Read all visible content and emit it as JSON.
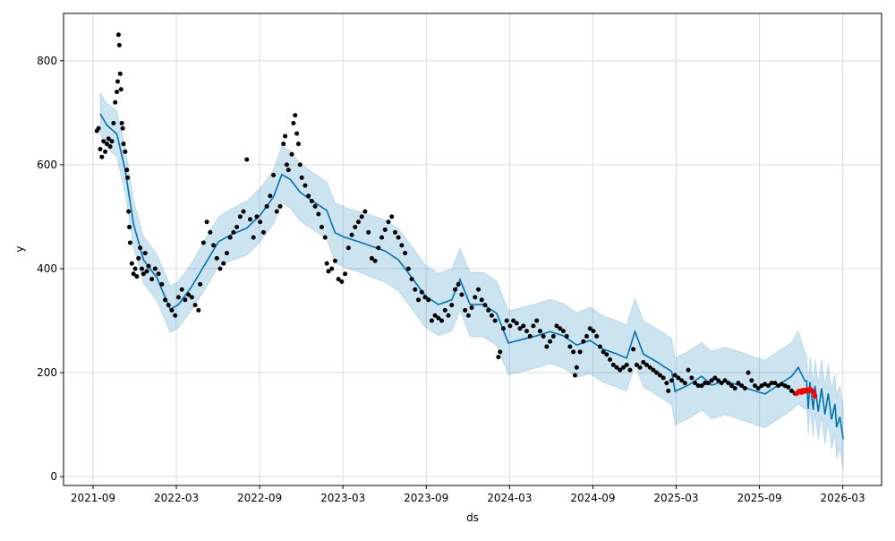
{
  "chart_data": {
    "type": "line",
    "title": "",
    "xlabel": "ds",
    "ylabel": "y",
    "xlim": [
      2021.49,
      2026.4
    ],
    "ylim": [
      -17,
      891
    ],
    "grid": true,
    "x_unit": "decimal year",
    "x_ticks": [
      {
        "label": "2021-09",
        "value": 2021.667
      },
      {
        "label": "2022-03",
        "value": 2022.167
      },
      {
        "label": "2022-09",
        "value": 2022.667
      },
      {
        "label": "2023-03",
        "value": 2023.167
      },
      {
        "label": "2023-09",
        "value": 2023.667
      },
      {
        "label": "2024-03",
        "value": 2024.167
      },
      {
        "label": "2024-09",
        "value": 2024.667
      },
      {
        "label": "2025-03",
        "value": 2025.167
      },
      {
        "label": "2025-09",
        "value": 2025.667
      },
      {
        "label": "2026-03",
        "value": 2026.167
      }
    ],
    "y_ticks": [
      {
        "label": "0",
        "value": 0
      },
      {
        "label": "200",
        "value": 200
      },
      {
        "label": "400",
        "value": 400
      },
      {
        "label": "600",
        "value": 600
      },
      {
        "label": "800",
        "value": 800
      }
    ],
    "colors": {
      "forecast": "#0072B2",
      "interval": "#0072B2",
      "observed": "#000000",
      "test": "#ff0000"
    },
    "forecast_columns": [
      "ds",
      "yhat",
      "interval_halfwidth"
    ],
    "forecast": [
      [
        2021.71,
        698,
        40
      ],
      [
        2021.75,
        676,
        42
      ],
      [
        2021.81,
        659,
        45
      ],
      [
        2021.86,
        590,
        45
      ],
      [
        2021.91,
        486,
        45
      ],
      [
        2021.97,
        417,
        45
      ],
      [
        2022.05,
        383,
        45
      ],
      [
        2022.13,
        322,
        45
      ],
      [
        2022.18,
        331,
        45
      ],
      [
        2022.26,
        366,
        45
      ],
      [
        2022.34,
        409,
        48
      ],
      [
        2022.42,
        452,
        48
      ],
      [
        2022.5,
        466,
        50
      ],
      [
        2022.59,
        478,
        52
      ],
      [
        2022.67,
        503,
        52
      ],
      [
        2022.75,
        538,
        52
      ],
      [
        2022.8,
        581,
        55
      ],
      [
        2022.85,
        572,
        55
      ],
      [
        2022.91,
        547,
        55
      ],
      [
        2022.99,
        529,
        55
      ],
      [
        2023.07,
        512,
        55
      ],
      [
        2023.12,
        469,
        58
      ],
      [
        2023.18,
        460,
        58
      ],
      [
        2023.26,
        452,
        58
      ],
      [
        2023.34,
        443,
        60
      ],
      [
        2023.42,
        434,
        60
      ],
      [
        2023.5,
        417,
        60
      ],
      [
        2023.58,
        383,
        60
      ],
      [
        2023.66,
        348,
        60
      ],
      [
        2023.74,
        331,
        60
      ],
      [
        2023.82,
        340,
        60
      ],
      [
        2023.87,
        379,
        60
      ],
      [
        2023.93,
        331,
        62
      ],
      [
        2024.01,
        331,
        62
      ],
      [
        2024.09,
        314,
        62
      ],
      [
        2024.16,
        257,
        62
      ],
      [
        2024.22,
        262,
        62
      ],
      [
        2024.33,
        271,
        62
      ],
      [
        2024.41,
        279,
        62
      ],
      [
        2024.49,
        271,
        62
      ],
      [
        2024.57,
        253,
        62
      ],
      [
        2024.65,
        262,
        64
      ],
      [
        2024.73,
        245,
        64
      ],
      [
        2024.81,
        236,
        64
      ],
      [
        2024.87,
        228,
        64
      ],
      [
        2024.92,
        279,
        64
      ],
      [
        2024.97,
        236,
        64
      ],
      [
        2025.06,
        219,
        64
      ],
      [
        2025.14,
        202,
        64
      ],
      [
        2025.16,
        164,
        65
      ],
      [
        2025.24,
        176,
        65
      ],
      [
        2025.32,
        193,
        65
      ],
      [
        2025.38,
        176,
        65
      ],
      [
        2025.46,
        184,
        65
      ],
      [
        2025.54,
        176,
        65
      ],
      [
        2025.62,
        167,
        65
      ],
      [
        2025.7,
        159,
        65
      ],
      [
        2025.78,
        176,
        65
      ],
      [
        2025.86,
        193,
        65
      ],
      [
        2025.9,
        210,
        70
      ],
      [
        2025.94,
        184,
        55
      ],
      [
        2025.95,
        184,
        50
      ],
      [
        2025.96,
        130,
        50
      ],
      [
        2025.97,
        182,
        50
      ],
      [
        2025.99,
        128,
        52
      ],
      [
        2026.0,
        175,
        52
      ],
      [
        2026.02,
        125,
        55
      ],
      [
        2026.04,
        170,
        55
      ],
      [
        2026.06,
        120,
        57
      ],
      [
        2026.08,
        160,
        57
      ],
      [
        2026.1,
        110,
        58
      ],
      [
        2026.12,
        140,
        58
      ],
      [
        2026.13,
        95,
        60
      ],
      [
        2026.15,
        115,
        60
      ],
      [
        2026.17,
        72,
        60
      ]
    ],
    "observed_columns": [
      "ds",
      "y"
    ],
    "observed": [
      [
        2021.69,
        665
      ],
      [
        2021.7,
        670
      ],
      [
        2021.71,
        630
      ],
      [
        2021.72,
        615
      ],
      [
        2021.73,
        645
      ],
      [
        2021.74,
        625
      ],
      [
        2021.75,
        640
      ],
      [
        2021.76,
        650
      ],
      [
        2021.77,
        635
      ],
      [
        2021.78,
        645
      ],
      [
        2021.79,
        680
      ],
      [
        2021.8,
        720
      ],
      [
        2021.81,
        740
      ],
      [
        2021.815,
        760
      ],
      [
        2021.82,
        850
      ],
      [
        2021.825,
        830
      ],
      [
        2021.83,
        775
      ],
      [
        2021.835,
        745
      ],
      [
        2021.84,
        680
      ],
      [
        2021.845,
        670
      ],
      [
        2021.85,
        640
      ],
      [
        2021.86,
        625
      ],
      [
        2021.87,
        590
      ],
      [
        2021.875,
        575
      ],
      [
        2021.88,
        510
      ],
      [
        2021.885,
        480
      ],
      [
        2021.89,
        450
      ],
      [
        2021.9,
        410
      ],
      [
        2021.91,
        390
      ],
      [
        2021.92,
        400
      ],
      [
        2021.93,
        385
      ],
      [
        2021.94,
        420
      ],
      [
        2021.95,
        440
      ],
      [
        2021.96,
        400
      ],
      [
        2021.97,
        390
      ],
      [
        2021.98,
        430
      ],
      [
        2021.99,
        395
      ],
      [
        2022.0,
        405
      ],
      [
        2022.02,
        380
      ],
      [
        2022.04,
        400
      ],
      [
        2022.06,
        390
      ],
      [
        2022.08,
        370
      ],
      [
        2022.1,
        340
      ],
      [
        2022.12,
        330
      ],
      [
        2022.14,
        320
      ],
      [
        2022.16,
        310
      ],
      [
        2022.18,
        345
      ],
      [
        2022.2,
        360
      ],
      [
        2022.22,
        340
      ],
      [
        2022.24,
        350
      ],
      [
        2022.26,
        345
      ],
      [
        2022.28,
        330
      ],
      [
        2022.3,
        320
      ],
      [
        2022.31,
        370
      ],
      [
        2022.33,
        450
      ],
      [
        2022.35,
        490
      ],
      [
        2022.37,
        470
      ],
      [
        2022.39,
        445
      ],
      [
        2022.41,
        420
      ],
      [
        2022.43,
        400
      ],
      [
        2022.45,
        410
      ],
      [
        2022.47,
        430
      ],
      [
        2022.49,
        460
      ],
      [
        2022.51,
        470
      ],
      [
        2022.53,
        480
      ],
      [
        2022.55,
        500
      ],
      [
        2022.57,
        510
      ],
      [
        2022.59,
        610
      ],
      [
        2022.61,
        495
      ],
      [
        2022.63,
        460
      ],
      [
        2022.65,
        500
      ],
      [
        2022.67,
        490
      ],
      [
        2022.69,
        470
      ],
      [
        2022.71,
        520
      ],
      [
        2022.73,
        540
      ],
      [
        2022.75,
        580
      ],
      [
        2022.77,
        510
      ],
      [
        2022.79,
        520
      ],
      [
        2022.81,
        640
      ],
      [
        2022.82,
        655
      ],
      [
        2022.83,
        600
      ],
      [
        2022.84,
        590
      ],
      [
        2022.86,
        620
      ],
      [
        2022.87,
        680
      ],
      [
        2022.88,
        695
      ],
      [
        2022.89,
        660
      ],
      [
        2022.9,
        640
      ],
      [
        2022.91,
        600
      ],
      [
        2022.92,
        575
      ],
      [
        2022.94,
        560
      ],
      [
        2022.96,
        540
      ],
      [
        2022.98,
        530
      ],
      [
        2023.0,
        520
      ],
      [
        2023.02,
        505
      ],
      [
        2023.04,
        480
      ],
      [
        2023.06,
        460
      ],
      [
        2023.07,
        410
      ],
      [
        2023.08,
        395
      ],
      [
        2023.1,
        400
      ],
      [
        2023.12,
        415
      ],
      [
        2023.14,
        380
      ],
      [
        2023.16,
        375
      ],
      [
        2023.18,
        390
      ],
      [
        2023.2,
        440
      ],
      [
        2023.22,
        465
      ],
      [
        2023.24,
        480
      ],
      [
        2023.26,
        490
      ],
      [
        2023.28,
        500
      ],
      [
        2023.3,
        510
      ],
      [
        2023.32,
        470
      ],
      [
        2023.34,
        420
      ],
      [
        2023.36,
        415
      ],
      [
        2023.38,
        440
      ],
      [
        2023.4,
        460
      ],
      [
        2023.42,
        475
      ],
      [
        2023.44,
        490
      ],
      [
        2023.46,
        500
      ],
      [
        2023.48,
        470
      ],
      [
        2023.5,
        460
      ],
      [
        2023.52,
        445
      ],
      [
        2023.54,
        430
      ],
      [
        2023.56,
        400
      ],
      [
        2023.58,
        380
      ],
      [
        2023.6,
        360
      ],
      [
        2023.62,
        340
      ],
      [
        2023.64,
        355
      ],
      [
        2023.66,
        345
      ],
      [
        2023.68,
        340
      ],
      [
        2023.7,
        300
      ],
      [
        2023.72,
        310
      ],
      [
        2023.74,
        305
      ],
      [
        2023.76,
        300
      ],
      [
        2023.78,
        320
      ],
      [
        2023.8,
        310
      ],
      [
        2023.82,
        330
      ],
      [
        2023.84,
        360
      ],
      [
        2023.86,
        370
      ],
      [
        2023.88,
        350
      ],
      [
        2023.9,
        320
      ],
      [
        2023.92,
        310
      ],
      [
        2023.94,
        325
      ],
      [
        2023.96,
        345
      ],
      [
        2023.98,
        360
      ],
      [
        2024.0,
        340
      ],
      [
        2024.02,
        330
      ],
      [
        2024.04,
        320
      ],
      [
        2024.06,
        310
      ],
      [
        2024.08,
        300
      ],
      [
        2024.1,
        230
      ],
      [
        2024.11,
        240
      ],
      [
        2024.13,
        285
      ],
      [
        2024.15,
        300
      ],
      [
        2024.17,
        290
      ],
      [
        2024.19,
        300
      ],
      [
        2024.21,
        295
      ],
      [
        2024.23,
        285
      ],
      [
        2024.25,
        290
      ],
      [
        2024.27,
        280
      ],
      [
        2024.29,
        270
      ],
      [
        2024.31,
        290
      ],
      [
        2024.33,
        300
      ],
      [
        2024.35,
        280
      ],
      [
        2024.37,
        270
      ],
      [
        2024.39,
        250
      ],
      [
        2024.41,
        260
      ],
      [
        2024.43,
        270
      ],
      [
        2024.45,
        290
      ],
      [
        2024.47,
        285
      ],
      [
        2024.49,
        280
      ],
      [
        2024.51,
        270
      ],
      [
        2024.53,
        250
      ],
      [
        2024.55,
        240
      ],
      [
        2024.56,
        195
      ],
      [
        2024.57,
        210
      ],
      [
        2024.59,
        240
      ],
      [
        2024.61,
        260
      ],
      [
        2024.63,
        270
      ],
      [
        2024.65,
        285
      ],
      [
        2024.67,
        280
      ],
      [
        2024.69,
        270
      ],
      [
        2024.71,
        250
      ],
      [
        2024.73,
        240
      ],
      [
        2024.75,
        235
      ],
      [
        2024.77,
        225
      ],
      [
        2024.79,
        215
      ],
      [
        2024.81,
        210
      ],
      [
        2024.83,
        205
      ],
      [
        2024.85,
        210
      ],
      [
        2024.87,
        215
      ],
      [
        2024.89,
        205
      ],
      [
        2024.91,
        245
      ],
      [
        2024.93,
        215
      ],
      [
        2024.95,
        210
      ],
      [
        2024.97,
        220
      ],
      [
        2024.99,
        215
      ],
      [
        2025.01,
        210
      ],
      [
        2025.03,
        205
      ],
      [
        2025.05,
        200
      ],
      [
        2025.07,
        195
      ],
      [
        2025.09,
        190
      ],
      [
        2025.11,
        180
      ],
      [
        2025.12,
        165
      ],
      [
        2025.14,
        185
      ],
      [
        2025.16,
        195
      ],
      [
        2025.18,
        190
      ],
      [
        2025.2,
        185
      ],
      [
        2025.22,
        180
      ],
      [
        2025.24,
        205
      ],
      [
        2025.26,
        190
      ],
      [
        2025.28,
        180
      ],
      [
        2025.3,
        175
      ],
      [
        2025.32,
        175
      ],
      [
        2025.34,
        180
      ],
      [
        2025.36,
        180
      ],
      [
        2025.38,
        185
      ],
      [
        2025.4,
        190
      ],
      [
        2025.42,
        185
      ],
      [
        2025.44,
        180
      ],
      [
        2025.46,
        185
      ],
      [
        2025.48,
        180
      ],
      [
        2025.5,
        175
      ],
      [
        2025.52,
        170
      ],
      [
        2025.54,
        180
      ],
      [
        2025.56,
        175
      ],
      [
        2025.58,
        170
      ],
      [
        2025.6,
        200
      ],
      [
        2025.62,
        185
      ],
      [
        2025.64,
        175
      ],
      [
        2025.66,
        170
      ],
      [
        2025.68,
        175
      ],
      [
        2025.7,
        178
      ],
      [
        2025.72,
        175
      ],
      [
        2025.74,
        180
      ],
      [
        2025.76,
        180
      ],
      [
        2025.78,
        175
      ],
      [
        2025.8,
        178
      ],
      [
        2025.82,
        175
      ],
      [
        2025.84,
        172
      ],
      [
        2025.86,
        165
      ],
      [
        2025.88,
        160
      ]
    ],
    "test_observed": [
      [
        2025.89,
        160
      ],
      [
        2025.9,
        163
      ],
      [
        2025.91,
        165
      ],
      [
        2025.92,
        162
      ],
      [
        2025.93,
        166
      ],
      [
        2025.94,
        164
      ],
      [
        2025.95,
        167
      ],
      [
        2025.96,
        165
      ],
      [
        2025.97,
        168
      ],
      [
        2025.98,
        166
      ],
      [
        2025.99,
        163
      ],
      [
        2026.0,
        155
      ]
    ]
  }
}
